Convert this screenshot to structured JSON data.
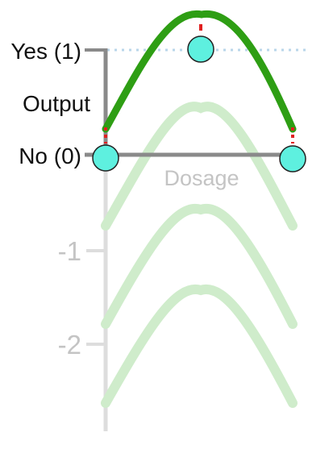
{
  "labels": {
    "yes": "Yes (1)",
    "output": "Output",
    "no": "No (0)",
    "dosage": "Dosage",
    "tick_minus_1": "-1",
    "tick_minus_2": "-2"
  },
  "colors": {
    "main_curve": "#2e9e14",
    "faded_curve": "#cfeccb",
    "data_point_fill": "#5ef0df",
    "data_point_stroke": "#222222",
    "axis": "#8a8a8a",
    "faded_axis": "#dddddd",
    "faded_text": "#c4c4c4",
    "dotted_line": "#b9d6ea",
    "residual_marker": "#e02020"
  }
}
